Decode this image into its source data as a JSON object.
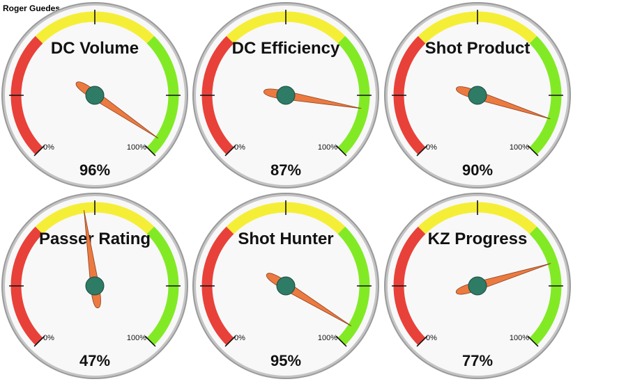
{
  "header": {
    "owner_name": "Roger Guedes"
  },
  "scale": {
    "min_label": "0%",
    "max_label": "100%"
  },
  "colors": {
    "red_zone": "#e8413a",
    "yellow_zone": "#f5ee37",
    "green_zone": "#82ea24",
    "needle": "#ec7a40",
    "hub": "#2e7b66",
    "face": "#f8f8f8",
    "rim": "#c4c4c4"
  },
  "chart_data": [
    {
      "type": "gauge",
      "title": "DC Volume",
      "value": 96,
      "value_label": "96%"
    },
    {
      "type": "gauge",
      "title": "DC Efficiency",
      "value": 87,
      "value_label": "87%"
    },
    {
      "type": "gauge",
      "title": "Shot Product",
      "value": 90,
      "value_label": "90%"
    },
    {
      "type": "gauge",
      "title": "Passer Rating",
      "value": 47,
      "value_label": "47%"
    },
    {
      "type": "gauge",
      "title": "Shot Hunter",
      "value": 95,
      "value_label": "95%"
    },
    {
      "type": "gauge",
      "title": "KZ Progress",
      "value": 77,
      "value_label": "77%"
    }
  ]
}
